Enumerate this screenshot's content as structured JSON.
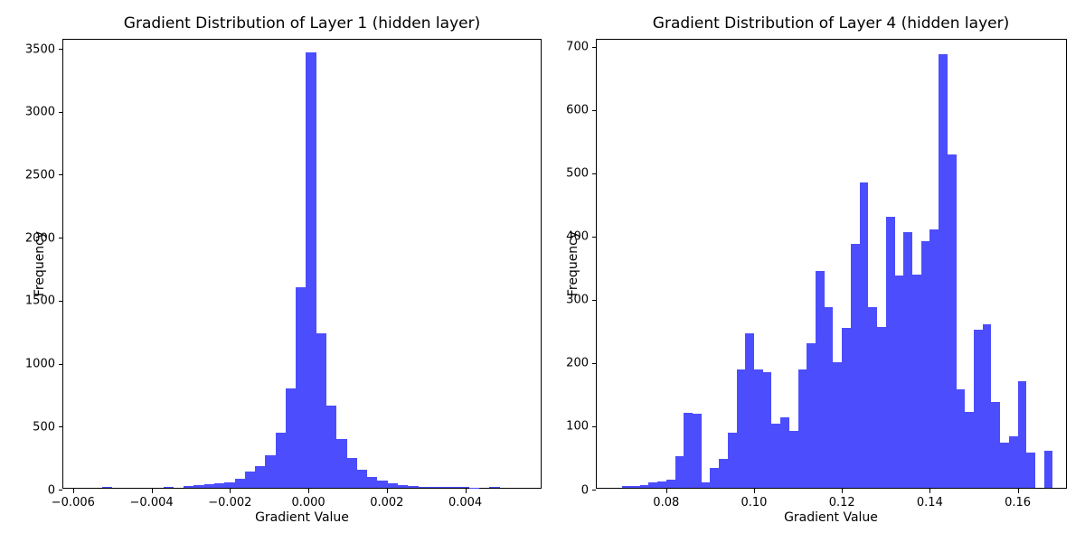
{
  "figure": {
    "background": "#ffffff",
    "bar_color": "#4C4DFC",
    "axis_color": "#000000"
  },
  "chart_data": [
    {
      "type": "bar",
      "subtype": "histogram",
      "title": "Gradient Distribution of Layer 1 (hidden layer)",
      "xlabel": "Gradient Value",
      "ylabel": "Frequency",
      "xlim": [
        -0.00625,
        0.00597
      ],
      "ylim": [
        0,
        3572
      ],
      "grid": false,
      "legend": null,
      "bin_start": -0.00526,
      "bin_width": 0.00026,
      "frequencies": [
        9,
        0,
        0,
        0,
        0,
        0,
        7,
        0,
        12,
        19,
        26,
        36,
        43,
        74,
        127,
        175,
        258,
        440,
        790,
        1590,
        3460,
        1230,
        650,
        390,
        234,
        141,
        88,
        60,
        38,
        22,
        14,
        10,
        8,
        6,
        5,
        4,
        3,
        0,
        7,
        0
      ],
      "xticks": [
        {
          "v": -0.006,
          "label": "−0.006"
        },
        {
          "v": -0.004,
          "label": "−0.004"
        },
        {
          "v": -0.002,
          "label": "−0.002"
        },
        {
          "v": 0.0,
          "label": "0.000"
        },
        {
          "v": 0.002,
          "label": "0.002"
        },
        {
          "v": 0.004,
          "label": "0.004"
        }
      ],
      "yticks": [
        {
          "v": 0,
          "label": "0"
        },
        {
          "v": 500,
          "label": "500"
        },
        {
          "v": 1000,
          "label": "1000"
        },
        {
          "v": 1500,
          "label": "1500"
        },
        {
          "v": 2000,
          "label": "2000"
        },
        {
          "v": 2500,
          "label": "2500"
        },
        {
          "v": 3000,
          "label": "3000"
        },
        {
          "v": 3500,
          "label": "3500"
        }
      ]
    },
    {
      "type": "bar",
      "subtype": "histogram",
      "title": "Gradient Distribution of Layer 4 (hidden layer)",
      "xlabel": "Gradient Value",
      "ylabel": "Frequency",
      "xlim": [
        0.0642,
        0.1714
      ],
      "ylim": [
        0,
        711
      ],
      "grid": false,
      "legend": null,
      "bin_start": 0.07,
      "bin_width": 0.002,
      "frequencies": [
        3,
        3,
        4,
        8,
        10,
        13,
        50,
        119,
        117,
        8,
        31,
        45,
        87,
        187,
        244,
        187,
        183,
        101,
        112,
        90,
        187,
        229,
        343,
        286,
        198,
        253,
        385,
        482,
        285,
        254,
        429,
        335,
        404,
        337,
        390,
        408,
        686,
        527,
        156,
        120,
        250,
        258,
        135,
        72,
        82,
        169,
        55,
        0,
        59
      ],
      "xticks": [
        {
          "v": 0.08,
          "label": "0.08"
        },
        {
          "v": 0.1,
          "label": "0.10"
        },
        {
          "v": 0.12,
          "label": "0.12"
        },
        {
          "v": 0.14,
          "label": "0.14"
        },
        {
          "v": 0.16,
          "label": "0.16"
        }
      ],
      "yticks": [
        {
          "v": 0,
          "label": "0"
        },
        {
          "v": 100,
          "label": "100"
        },
        {
          "v": 200,
          "label": "200"
        },
        {
          "v": 300,
          "label": "300"
        },
        {
          "v": 400,
          "label": "400"
        },
        {
          "v": 500,
          "label": "500"
        },
        {
          "v": 600,
          "label": "600"
        },
        {
          "v": 700,
          "label": "700"
        }
      ]
    }
  ]
}
